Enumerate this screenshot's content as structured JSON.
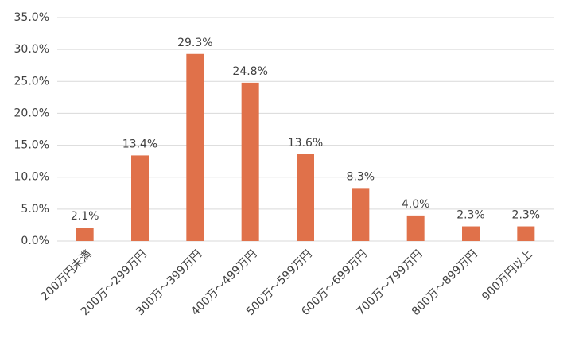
{
  "chart_data": {
    "type": "bar",
    "categories": [
      "200万円未満",
      "200万～299万円",
      "300万～399万円",
      "400万～499万円",
      "500万～599万円",
      "600万～699万円",
      "700万～799万円",
      "800万～899万円",
      "900万円以上"
    ],
    "values": [
      2.1,
      13.4,
      29.3,
      24.8,
      13.6,
      8.3,
      4.0,
      2.3,
      2.3
    ],
    "value_labels": [
      "2.1%",
      "13.4%",
      "29.3%",
      "24.8%",
      "13.6%",
      "8.3%",
      "4.0%",
      "2.3%",
      "2.3%"
    ],
    "color": "#e0714a",
    "ylim": [
      0,
      35
    ],
    "yticks": [
      {
        "value": 0,
        "label": "0.0%"
      },
      {
        "value": 5,
        "label": "5.0%"
      },
      {
        "value": 10,
        "label": "10.0%"
      },
      {
        "value": 15,
        "label": "15.0%"
      },
      {
        "value": 20,
        "label": "20.0%"
      },
      {
        "value": 25,
        "label": "25.0%"
      },
      {
        "value": 30,
        "label": "30.0%"
      },
      {
        "value": 35,
        "label": "35.0%"
      }
    ],
    "grid": true
  }
}
